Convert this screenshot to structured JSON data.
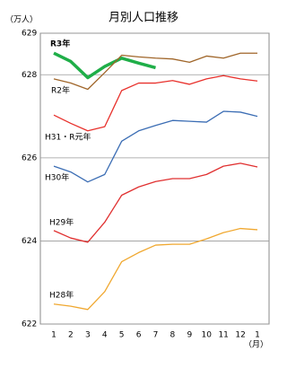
{
  "chart_data": {
    "type": "line",
    "title": "月別人口推移",
    "y_unit": "（万人）",
    "x_unit": "（月）",
    "categories": [
      "1",
      "2",
      "3",
      "4",
      "5",
      "6",
      "7",
      "8",
      "9",
      "10",
      "11",
      "12",
      "1"
    ],
    "ylim": [
      622,
      629
    ],
    "yticks": [
      622,
      624,
      626,
      628,
      629
    ],
    "grid": true,
    "series": [
      {
        "name": "R3年",
        "color": "#1fae48",
        "bold": true,
        "values": [
          628.52,
          628.32,
          627.93,
          628.2,
          628.4,
          628.28,
          628.17,
          null,
          null,
          null,
          null,
          null,
          null
        ]
      },
      {
        "name": "R2年",
        "color": "#a0662a",
        "values": [
          627.9,
          627.8,
          627.65,
          628.05,
          628.47,
          628.43,
          628.4,
          628.38,
          628.3,
          628.45,
          628.4,
          628.52,
          628.52
        ]
      },
      {
        "name": "H31・R元年",
        "color": "#e8312c",
        "values": [
          627.03,
          626.83,
          626.65,
          626.75,
          627.62,
          627.8,
          627.8,
          627.86,
          627.77,
          627.9,
          627.98,
          627.9,
          627.85
        ]
      },
      {
        "name": "H30年",
        "color": "#3b6db4",
        "values": [
          625.8,
          625.66,
          625.42,
          625.6,
          626.4,
          626.65,
          626.78,
          626.9,
          626.88,
          626.86,
          627.12,
          627.1,
          627.0
        ]
      },
      {
        "name": "H29年",
        "color": "#e03030",
        "values": [
          624.25,
          624.07,
          623.97,
          624.45,
          625.1,
          625.3,
          625.43,
          625.5,
          625.5,
          625.6,
          625.8,
          625.87,
          625.78
        ]
      },
      {
        "name": "H28年",
        "color": "#f0a830",
        "values": [
          622.48,
          622.43,
          622.35,
          622.78,
          623.5,
          623.72,
          623.9,
          623.92,
          623.92,
          624.05,
          624.2,
          624.3,
          624.27
        ]
      }
    ]
  }
}
